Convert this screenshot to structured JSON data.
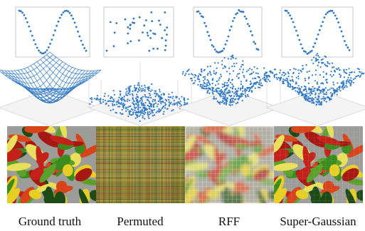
{
  "captions": [
    "Ground truth",
    "Permuted",
    "RFF",
    "Super-Gaussian"
  ]
}
